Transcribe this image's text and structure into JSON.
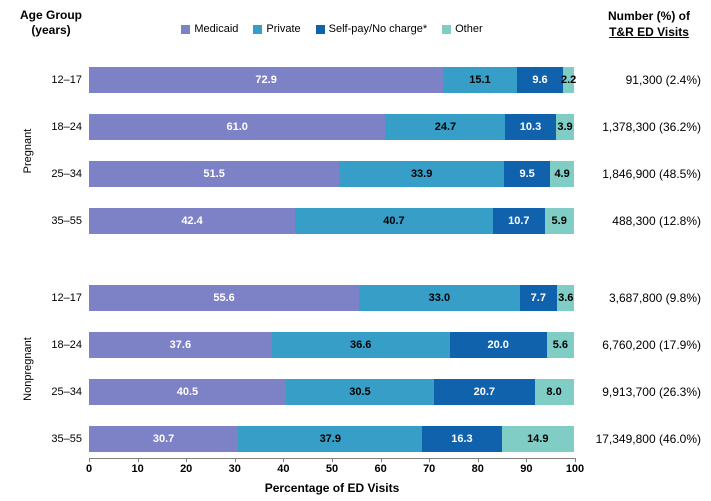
{
  "title_left": {
    "line1": "Age Group",
    "line2": "(years)"
  },
  "right_header": {
    "line1": "Number (%) of",
    "line2": "T&R ED Visits"
  },
  "legend": {
    "items": [
      {
        "label": "Medicaid",
        "color": "#7d81c6"
      },
      {
        "label": "Private",
        "color": "#379fc7"
      },
      {
        "label": "Self-pay/No charge*",
        "color": "#1062ac"
      },
      {
        "label": "Other",
        "color": "#80cdc5"
      }
    ]
  },
  "chart_data": {
    "type": "bar",
    "stacked": true,
    "orientation": "horizontal",
    "series": [
      "Medicaid",
      "Private",
      "Self-pay/No charge*",
      "Other"
    ],
    "series_colors": [
      "#7d81c6",
      "#379fc7",
      "#1062ac",
      "#80cdc5"
    ],
    "series_label_colors": [
      "#ffffff",
      "#000000",
      "#ffffff",
      "#000000"
    ],
    "xlabel": "Percentage of ED Visits",
    "xlim": [
      0,
      100
    ],
    "x_ticks": [
      0,
      10,
      20,
      30,
      40,
      50,
      60,
      70,
      80,
      90,
      100
    ],
    "axis_color": "#7f7f7f",
    "groups": [
      {
        "name": "Pregnant",
        "rows": [
          {
            "age": "12–17",
            "values": [
              72.9,
              15.1,
              9.6,
              2.2
            ],
            "total": "91,300 (2.4%)"
          },
          {
            "age": "18–24",
            "values": [
              61.0,
              24.7,
              10.3,
              3.9
            ],
            "total": "1,378,300 (36.2%)"
          },
          {
            "age": "25–34",
            "values": [
              51.5,
              33.9,
              9.5,
              4.9
            ],
            "total": "1,846,900 (48.5%)"
          },
          {
            "age": "35–55",
            "values": [
              42.4,
              40.7,
              10.7,
              5.9
            ],
            "total": "488,300 (12.8%)"
          }
        ]
      },
      {
        "name": "Nonpregnant",
        "rows": [
          {
            "age": "12–17",
            "values": [
              55.6,
              33.0,
              7.7,
              3.6
            ],
            "total": "3,687,800 (9.8%)"
          },
          {
            "age": "18–24",
            "values": [
              37.6,
              36.6,
              20.0,
              5.6
            ],
            "total": "6,760,200 (17.9%)"
          },
          {
            "age": "25–34",
            "values": [
              40.5,
              30.5,
              20.7,
              8.0
            ],
            "total": "9,913,700 (26.3%)"
          },
          {
            "age": "35–55",
            "values": [
              30.7,
              37.9,
              16.3,
              14.9
            ],
            "total": "17,349,800 (46.0%)"
          }
        ]
      }
    ]
  }
}
